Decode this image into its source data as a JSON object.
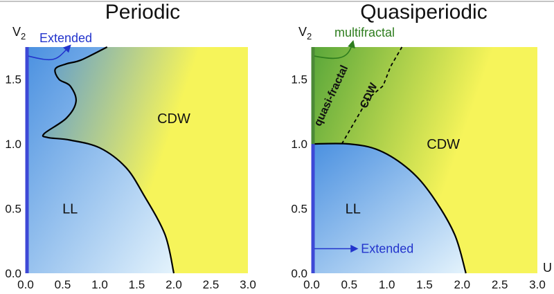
{
  "colors": {
    "blue_deep": "#4a90e0",
    "blue_light": "#e4f3fc",
    "green_deep": "#58a63a",
    "yellow": "#f6f45a",
    "extended_bar": "#3d48d6",
    "multifractal_bar": "#4c8a36",
    "extended_text": "#2233cc",
    "multifractal_text": "#2e7d1e",
    "boundary": "#000000"
  },
  "chart_data": [
    {
      "type": "area",
      "title": "Periodic",
      "xlabel": "",
      "ylabel": "V₂",
      "ylabel_base": "V",
      "ylabel_sub": "2",
      "xlim": [
        0,
        3.0
      ],
      "ylim": [
        0,
        1.75
      ],
      "xticks": [
        0,
        0.5,
        1.0,
        1.5,
        2.0,
        2.5,
        3.0
      ],
      "xtick_labels": [
        "0.0",
        "0.5",
        "1.0",
        "1.5",
        "2.0",
        "2.5",
        "3.0"
      ],
      "yticks": [
        0,
        0.5,
        1.0,
        1.5
      ],
      "ytick_labels": [
        "0.0",
        "0.5",
        "1.0",
        "1.5"
      ],
      "regions": [
        {
          "label": "LL",
          "x": 0.6,
          "y": 0.5
        },
        {
          "label": "CDW",
          "x": 2.0,
          "y": 1.2
        }
      ],
      "boundary": [
        [
          2.0,
          0.0
        ],
        [
          1.88,
          0.3
        ],
        [
          1.6,
          0.6
        ],
        [
          1.35,
          0.82
        ],
        [
          1.0,
          0.97
        ],
        [
          0.6,
          1.03
        ],
        [
          0.3,
          1.05
        ],
        [
          0.25,
          1.08
        ],
        [
          0.55,
          1.2
        ],
        [
          0.68,
          1.33
        ],
        [
          0.6,
          1.45
        ],
        [
          0.45,
          1.5
        ],
        [
          0.4,
          1.58
        ],
        [
          0.55,
          1.62
        ],
        [
          0.75,
          1.65
        ],
        [
          1.1,
          1.75
        ]
      ],
      "extended_line": {
        "label": "Extended",
        "x": 0.0,
        "y_range": [
          0,
          1.75
        ]
      },
      "annotations": [
        {
          "text": "Extended",
          "color": "#2233cc",
          "arrow_from": [
            0.0,
            1.68
          ],
          "arrow_to": [
            0.6,
            1.75
          ]
        }
      ]
    },
    {
      "type": "area",
      "title": "Quasiperiodic",
      "xlabel": "U",
      "ylabel": "V₂",
      "ylabel_base": "V",
      "ylabel_sub": "2",
      "xlim": [
        0,
        3.0
      ],
      "ylim": [
        0,
        1.75
      ],
      "xticks": [
        0,
        0.5,
        1.0,
        1.5,
        2.0,
        2.5,
        3.0
      ],
      "xtick_labels": [
        "0.0",
        "0.5",
        "1.0",
        "1.5",
        "2.0",
        "2.5",
        "3.0"
      ],
      "yticks": [
        0,
        0.5,
        1.0,
        1.5
      ],
      "ytick_labels": [
        "0.0",
        "0.5",
        "1.0",
        "1.5"
      ],
      "regions": [
        {
          "label": "LL",
          "x": 0.55,
          "y": 0.5
        },
        {
          "label": "CDW",
          "x": 1.75,
          "y": 1.0
        },
        {
          "label": "quasi-fractal",
          "x": 0.3,
          "y": 1.4,
          "rotation": -65
        },
        {
          "label": "CDW",
          "x": 0.8,
          "y": 1.4,
          "rotation": -65
        }
      ],
      "boundary": [
        [
          2.05,
          0.0
        ],
        [
          1.9,
          0.3
        ],
        [
          1.6,
          0.6
        ],
        [
          1.3,
          0.8
        ],
        [
          0.9,
          0.95
        ],
        [
          0.5,
          1.0
        ],
        [
          0.0,
          1.0
        ]
      ],
      "dashed_boundary": [
        [
          0.4,
          1.0
        ],
        [
          0.6,
          1.2
        ],
        [
          0.75,
          1.35
        ],
        [
          0.95,
          1.45
        ],
        [
          1.05,
          1.6
        ],
        [
          1.2,
          1.75
        ]
      ],
      "extended_line": {
        "label": "Extended",
        "x": 0.0,
        "y_range": [
          0,
          1.0
        ]
      },
      "multifractal_line": {
        "label": "multifractal",
        "x": 0.0,
        "y_range": [
          1.0,
          1.75
        ]
      },
      "annotations": [
        {
          "text": "multifractal",
          "color": "#2e7d1e",
          "arrow_from": [
            0.0,
            1.68
          ],
          "arrow_to": [
            0.55,
            1.75
          ]
        },
        {
          "text": "Extended",
          "color": "#2233cc",
          "arrow_from": [
            0.0,
            0.19
          ],
          "arrow_to": [
            0.6,
            0.19
          ]
        }
      ]
    }
  ]
}
